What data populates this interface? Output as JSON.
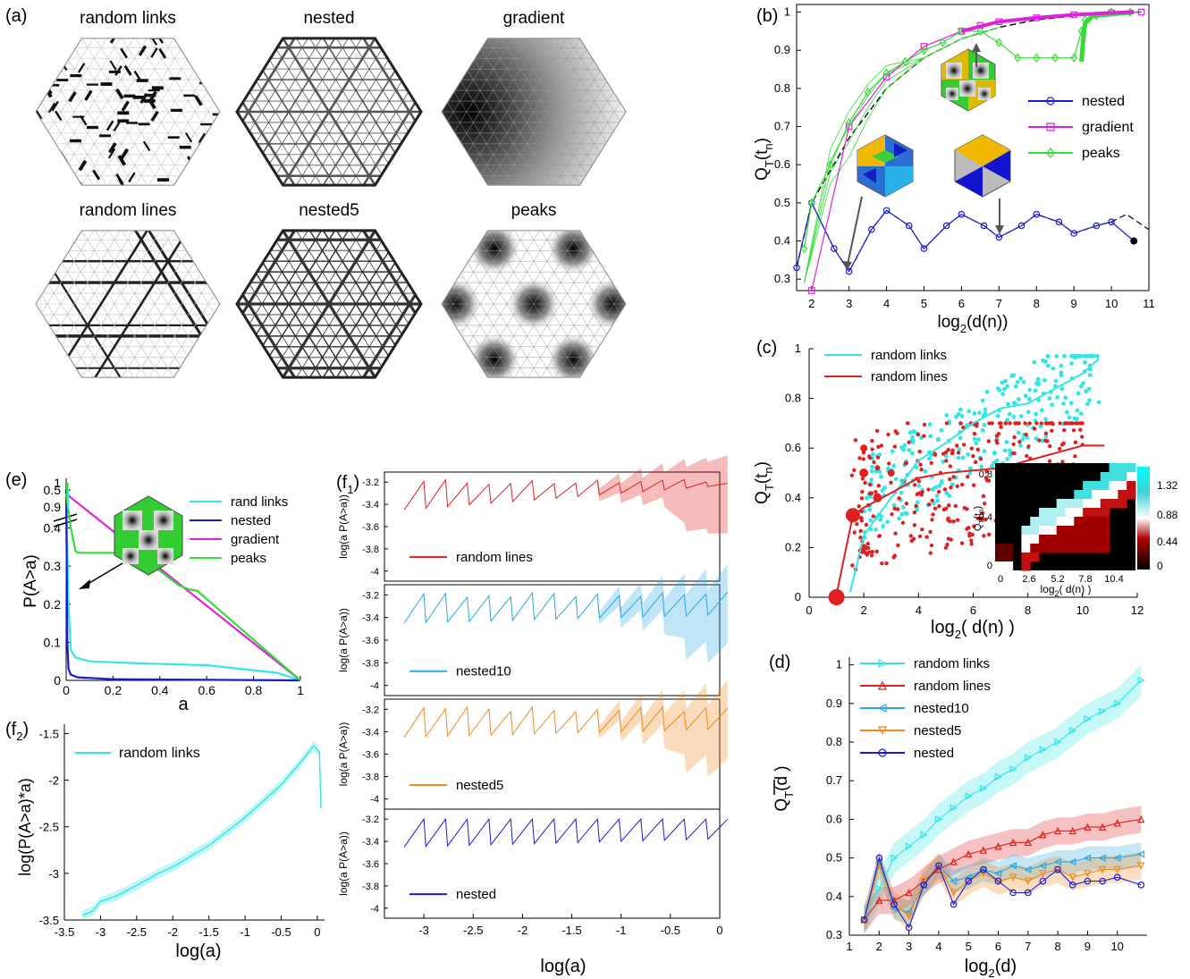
{
  "colors": {
    "nested": "#1a1ad6",
    "gradient": "#e020e0",
    "peaks": "#33dd33",
    "random_links": "#33e6e6",
    "random_lines": "#e02020",
    "nested10": "#2aa8e0",
    "nested5": "#f08a20",
    "black": "#000000"
  },
  "panel_a": {
    "label": "(a)",
    "titles": [
      "random links",
      "nested",
      "gradient",
      "random lines",
      "nested5",
      "peaks"
    ]
  },
  "chart_data": [
    {
      "id": "b",
      "panel_label": "(b)",
      "type": "line",
      "xlabel_main": "log",
      "xlabel_sub": "2",
      "xlabel_tail": "(d(n))",
      "ylabel_main": "Q",
      "ylabel_sub": "T",
      "ylabel_tail": "(t",
      "ylabel_n": "n",
      "ylabel_close": ")",
      "xlim": [
        1.6,
        11
      ],
      "ylim": [
        0.27,
        1.02
      ],
      "xticks": [
        2,
        3,
        4,
        5,
        6,
        7,
        8,
        9,
        10,
        11
      ],
      "yticks": [
        0.3,
        0.4,
        0.5,
        0.6,
        0.7,
        0.8,
        0.9,
        1
      ],
      "ytick_labels": [
        "0.3",
        "0.4",
        "0.5",
        "0.6",
        "0.7",
        "0.8",
        "0.9",
        "1"
      ],
      "legend_position": "center-right",
      "series": [
        {
          "name": "nested",
          "color_key": "nested",
          "marker": "circle",
          "x": [
            1.6,
            2,
            2.6,
            3,
            3.6,
            4,
            4.6,
            5,
            5.6,
            6,
            6.6,
            7,
            7.6,
            8,
            8.6,
            9,
            9.6,
            10,
            10.6
          ],
          "y": [
            0.33,
            0.5,
            0.38,
            0.32,
            0.43,
            0.48,
            0.44,
            0.38,
            0.44,
            0.47,
            0.44,
            0.41,
            0.44,
            0.47,
            0.45,
            0.42,
            0.44,
            0.45,
            0.4
          ]
        },
        {
          "name": "gradient",
          "color_key": "gradient",
          "marker": "square",
          "x": [
            2,
            3,
            4,
            5,
            6,
            6.5,
            7,
            8,
            9,
            10,
            10.8
          ],
          "y": [
            0.27,
            0.7,
            0.83,
            0.91,
            0.95,
            0.965,
            0.975,
            0.985,
            0.993,
            0.998,
            1
          ]
        },
        {
          "name": "peaks",
          "color_key": "peaks",
          "marker": "diamond",
          "x": [
            1.8,
            2,
            2.5,
            3,
            3.5,
            4,
            4.5,
            5,
            5.5,
            6,
            6.5,
            7,
            7.5,
            8,
            8.5,
            9,
            9.2,
            9.3,
            9.6,
            10,
            10.5
          ],
          "y": [
            0.38,
            0.5,
            0.6,
            0.71,
            0.79,
            0.84,
            0.87,
            0.9,
            0.92,
            0.95,
            0.95,
            0.92,
            0.88,
            0.88,
            0.88,
            0.88,
            0.95,
            0.98,
            0.99,
            1,
            1
          ]
        }
      ]
    },
    {
      "id": "c",
      "panel_label": "(c)",
      "type": "scatter",
      "xlabel_main": "log",
      "xlabel_sub": "2",
      "xlabel_tail": "( d(n) )",
      "ylabel_main": "Q",
      "ylabel_sub": "T",
      "ylabel_tail": "(t",
      "ylabel_n": "n",
      "ylabel_close": ")",
      "xlim": [
        0,
        12
      ],
      "ylim": [
        0,
        1
      ],
      "xticks": [
        0,
        2,
        4,
        6,
        8,
        10,
        12
      ],
      "yticks": [
        0,
        0.2,
        0.4,
        0.6,
        0.8,
        1
      ],
      "ytick_labels": [
        "0",
        "0.2",
        "0.4",
        "0.6",
        "0.8",
        "1"
      ],
      "legend_position": "top-left",
      "series": [
        {
          "name": "random links",
          "color_key": "random_links",
          "trend_x": [
            1.5,
            2,
            3,
            4,
            5,
            6,
            7,
            8,
            9,
            10,
            10.6
          ],
          "trend_y": [
            0.02,
            0.25,
            0.4,
            0.55,
            0.62,
            0.7,
            0.76,
            0.78,
            0.84,
            0.9,
            0.96
          ]
        },
        {
          "name": "random lines",
          "color_key": "random_lines",
          "trend_x": [
            1,
            1.6,
            2,
            3,
            4,
            5,
            6,
            7,
            8,
            9,
            10,
            10.8
          ],
          "trend_y": [
            0.01,
            0.33,
            0.36,
            0.42,
            0.48,
            0.5,
            0.51,
            0.52,
            0.55,
            0.58,
            0.61,
            0.61
          ]
        }
      ],
      "inset": {
        "xlabel": "log",
        "xlabel_sub": "2",
        "xlabel_tail": "( d(n) )",
        "ylabel": "Q",
        "ylabel_sub": "T",
        "ylabel_tail": "(t",
        "ylabel_n": "n",
        "ylabel_close": ")",
        "xtick_labels": [
          "0",
          "2.6",
          "5.2",
          "7.8",
          "10.4"
        ],
        "ytick_labels": [
          "0.8",
          "0.4",
          "0"
        ],
        "colorbar_labels": [
          "1.32",
          "0.88",
          "0.44",
          "0"
        ]
      }
    },
    {
      "id": "d",
      "panel_label": "(d)",
      "type": "line",
      "xlabel_main": "log",
      "xlabel_sub": "2",
      "xlabel_tail": "(d)",
      "ylabel_main": "Q",
      "ylabel_sub": "T",
      "ylabel_tail": "(d )",
      "xlim": [
        1,
        11
      ],
      "ylim": [
        0.3,
        1.02
      ],
      "xticks": [
        1,
        2,
        3,
        4,
        5,
        6,
        7,
        8,
        9,
        10
      ],
      "yticks": [
        0.3,
        0.4,
        0.5,
        0.6,
        0.7,
        0.8,
        0.9,
        1
      ],
      "ytick_labels": [
        "0.3",
        "0.4",
        "0.5",
        "0.6",
        "0.7",
        "0.8",
        "0.9",
        "1"
      ],
      "legend_position": "top-left",
      "series": [
        {
          "name": "random links",
          "color_key": "random_links",
          "marker": "triangle-right",
          "x": [
            1.5,
            2,
            2.5,
            3,
            3.5,
            4,
            4.5,
            5,
            5.5,
            6,
            6.5,
            7,
            7.5,
            8,
            8.5,
            9,
            9.5,
            10,
            10.8
          ],
          "y": [
            0.34,
            0.42,
            0.5,
            0.53,
            0.56,
            0.6,
            0.63,
            0.66,
            0.68,
            0.71,
            0.73,
            0.76,
            0.78,
            0.8,
            0.83,
            0.86,
            0.88,
            0.9,
            0.96
          ]
        },
        {
          "name": "random lines",
          "color_key": "random_lines",
          "marker": "triangle-up",
          "x": [
            1.5,
            2,
            2.5,
            3,
            3.5,
            4,
            4.5,
            5,
            5.5,
            6,
            6.5,
            7,
            7.5,
            8,
            8.5,
            9,
            9.5,
            10,
            10.8
          ],
          "y": [
            0.34,
            0.39,
            0.39,
            0.41,
            0.44,
            0.47,
            0.49,
            0.51,
            0.52,
            0.53,
            0.54,
            0.54,
            0.56,
            0.57,
            0.57,
            0.58,
            0.58,
            0.59,
            0.6
          ]
        },
        {
          "name": "nested10",
          "color_key": "nested10",
          "marker": "triangle-left",
          "x": [
            1.5,
            2,
            2.5,
            3,
            3.5,
            4,
            4.5,
            5,
            5.5,
            6,
            6.5,
            7,
            7.5,
            8,
            8.5,
            9,
            9.5,
            10,
            10.8
          ],
          "y": [
            0.34,
            0.49,
            0.37,
            0.36,
            0.43,
            0.48,
            0.44,
            0.45,
            0.47,
            0.46,
            0.48,
            0.47,
            0.48,
            0.49,
            0.49,
            0.5,
            0.5,
            0.5,
            0.51
          ]
        },
        {
          "name": "nested5",
          "color_key": "nested5",
          "marker": "triangle-down",
          "x": [
            1.5,
            2,
            2.5,
            3,
            3.5,
            4,
            4.5,
            5,
            5.5,
            6,
            6.5,
            7,
            7.5,
            8,
            8.5,
            9,
            9.5,
            10,
            10.8
          ],
          "y": [
            0.34,
            0.48,
            0.38,
            0.35,
            0.44,
            0.48,
            0.41,
            0.44,
            0.46,
            0.44,
            0.45,
            0.44,
            0.46,
            0.47,
            0.45,
            0.46,
            0.47,
            0.47,
            0.48
          ]
        },
        {
          "name": "nested",
          "color_key": "nested",
          "marker": "circle",
          "x": [
            1.5,
            2,
            2.5,
            3,
            3.5,
            4,
            4.5,
            5,
            5.5,
            6,
            6.5,
            7,
            7.5,
            8,
            8.5,
            9,
            9.5,
            10,
            10.8
          ],
          "y": [
            0.34,
            0.5,
            0.38,
            0.32,
            0.43,
            0.48,
            0.38,
            0.44,
            0.47,
            0.44,
            0.41,
            0.41,
            0.44,
            0.47,
            0.43,
            0.44,
            0.44,
            0.45,
            0.43
          ]
        }
      ]
    },
    {
      "id": "e",
      "panel_label": "(e)",
      "type": "line",
      "xlabel": "a",
      "ylabel": "P(A>a)",
      "xlim": [
        0,
        1
      ],
      "ylim": [
        0,
        1
      ],
      "xticks": [
        0,
        0.2,
        0.4,
        0.6,
        0.8,
        1
      ],
      "xtick_labels": [
        "0",
        "0.2",
        "0.4",
        "0.6",
        "0.8",
        "1"
      ],
      "yticks": [
        0,
        0.1,
        0.2,
        0.3,
        0.4,
        0.5
      ],
      "ytick_labels": [
        "0",
        "0.1",
        "0.2",
        "0.3",
        "0.4",
        "0.5"
      ],
      "extra_ytick_labels": [
        "0.9",
        "1"
      ],
      "legend_position": "top-right",
      "series": [
        {
          "name": "rand links",
          "color_key": "random_links",
          "x": [
            0,
            0.01,
            0.02,
            0.04,
            0.1,
            0.3,
            0.6,
            0.9,
            1
          ],
          "y": [
            0.5,
            0.2,
            0.08,
            0.06,
            0.05,
            0.045,
            0.04,
            0.02,
            0
          ]
        },
        {
          "name": "nested",
          "color_key": "nested",
          "x": [
            0,
            0.005,
            0.01,
            0.02,
            0.05,
            0.2,
            1
          ],
          "y": [
            0.5,
            0.1,
            0.03,
            0.015,
            0.008,
            0.003,
            0
          ]
        },
        {
          "name": "gradient",
          "color_key": "gradient",
          "x": [
            0,
            1
          ],
          "y": [
            0.49,
            0
          ]
        },
        {
          "name": "peaks",
          "color_key": "peaks",
          "x": [
            0,
            0.02,
            0.04,
            0.05,
            0.3,
            0.48,
            0.52,
            0.56,
            1
          ],
          "y": [
            0.49,
            0.4,
            0.34,
            0.335,
            0.335,
            0.25,
            0.24,
            0.235,
            0
          ]
        }
      ]
    },
    {
      "id": "f1",
      "panel_label": "(f",
      "panel_label_sub": "1",
      "panel_label_close": ")",
      "type": "line",
      "xlabel": "log(a)",
      "ylabel": "log(a P(A>a))",
      "xlim": [
        -3.4,
        0
      ],
      "ylim": [
        -4.1,
        -3.1
      ],
      "xticks": [
        -3,
        -2.5,
        -2,
        -1.5,
        -1,
        -0.5,
        0
      ],
      "xtick_labels": [
        "-3",
        "-2.5",
        "-2",
        "-1.5",
        "-1",
        "-0.5",
        "0"
      ],
      "yticks": [
        -3.2,
        -3.4,
        -3.6,
        -3.8,
        -4
      ],
      "ytick_labels": [
        "-3.2",
        "-3.4",
        "-3.6",
        "-3.8",
        "-4"
      ],
      "series": [
        {
          "name": "random lines",
          "color_key": "random_lines"
        },
        {
          "name": "nested10",
          "color_key": "nested10"
        },
        {
          "name": "nested5",
          "color_key": "nested5"
        },
        {
          "name": "nested",
          "color_key": "nested"
        }
      ]
    },
    {
      "id": "f2",
      "panel_label": "(f",
      "panel_label_sub": "2",
      "panel_label_close": ")",
      "type": "line",
      "xlabel": "log(a)",
      "ylabel": "log(P(A>a)*a)",
      "xlim": [
        -3.5,
        0.1
      ],
      "ylim": [
        -3.5,
        -1.4
      ],
      "xticks": [
        -3.5,
        -3,
        -2.5,
        -2,
        -1.5,
        -1,
        -0.5,
        0
      ],
      "xtick_labels": [
        "-3.5",
        "-3",
        "-2.5",
        "-2",
        "-1.5",
        "-1",
        "-0.5",
        "0"
      ],
      "yticks": [
        -3.5,
        -3,
        -2.5,
        -2,
        -1.5
      ],
      "ytick_labels": [
        "-3.5",
        "-3",
        "-2.5",
        "-2",
        "-1.5"
      ],
      "series": [
        {
          "name": "random links",
          "color_key": "random_links",
          "x": [
            -3.25,
            -3.1,
            -3,
            -2.8,
            -2.5,
            -2.2,
            -2,
            -1.5,
            -1,
            -0.5,
            -0.2,
            -0.05,
            0.03,
            0.05
          ],
          "y": [
            -3.45,
            -3.4,
            -3.3,
            -3.25,
            -3.13,
            -3.0,
            -2.93,
            -2.7,
            -2.4,
            -2.05,
            -1.78,
            -1.63,
            -1.7,
            -2.3
          ]
        }
      ]
    }
  ]
}
